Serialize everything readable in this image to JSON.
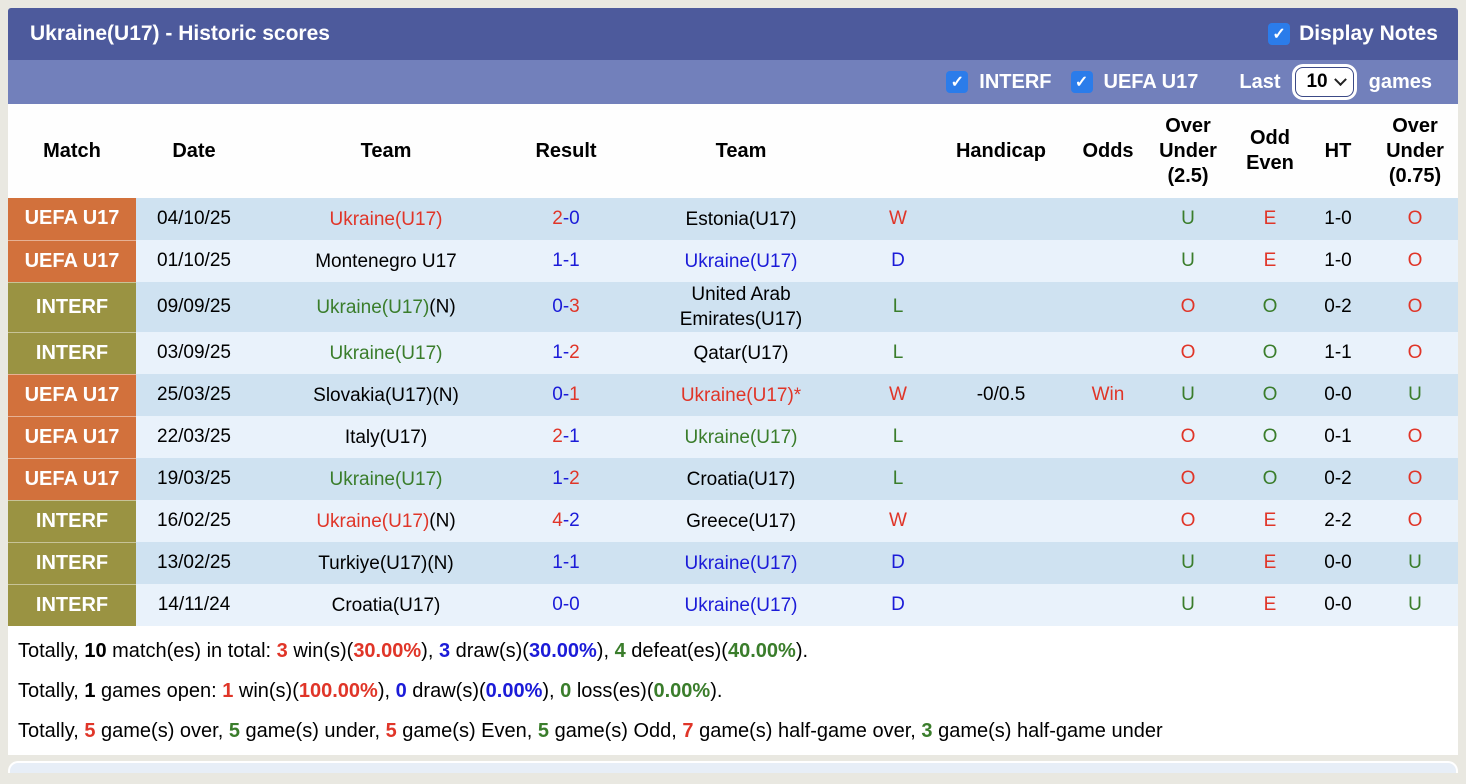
{
  "header": {
    "title": "Ukraine(U17) - Historic scores",
    "display_notes_label": "Display Notes",
    "display_notes_checked": true
  },
  "filter_bar": {
    "interf_label": "INTERF",
    "interf_checked": true,
    "uefa_label": "UEFA U17",
    "uefa_checked": true,
    "last_label": "Last",
    "last_value": "10",
    "games_label": "games"
  },
  "colors": {
    "titlebar": "#4d5a9c",
    "filterbar": "#7280bb",
    "uefa_badge": "#d2713c",
    "interf_badge": "#9a9342",
    "row_dark": "#cfe2f1",
    "row_light": "#e9f2fb",
    "red": "#e03528",
    "blue": "#1b1bd8",
    "green": "#3a7d2b",
    "checkbox_blue": "#2b7cea"
  },
  "table": {
    "columns": [
      "Match",
      "Date",
      "Team",
      "Result",
      "Team",
      "",
      "Handicap",
      "Odds",
      "Over Under (2.5)",
      "Odd Even",
      "HT",
      "Over Under (0.75)"
    ],
    "rows": [
      {
        "league": "UEFA U17",
        "style": "uefa",
        "date": "04/10/25",
        "team1": {
          "text": "Ukraine(U17)",
          "suffix": "",
          "color": "red"
        },
        "result": {
          "home": "2",
          "sep": "-",
          "away": "0",
          "home_color": "red",
          "away_color": "blue"
        },
        "team2": {
          "text": "Estonia(U17)",
          "suffix": "",
          "color": "black"
        },
        "wdl": {
          "text": "W",
          "color": "red"
        },
        "handicap": "",
        "odds": {
          "text": "",
          "color": "red"
        },
        "ou25": {
          "text": "U",
          "color": "green"
        },
        "oe": {
          "text": "E",
          "color": "red"
        },
        "ht": "1-0",
        "ou075": {
          "text": "O",
          "color": "red"
        }
      },
      {
        "league": "UEFA U17",
        "style": "uefa",
        "date": "01/10/25",
        "team1": {
          "text": "Montenegro U17",
          "suffix": "",
          "color": "black"
        },
        "result": {
          "home": "1",
          "sep": "-",
          "away": "1",
          "home_color": "blue",
          "away_color": "blue"
        },
        "team2": {
          "text": "Ukraine(U17)",
          "suffix": "",
          "color": "blue"
        },
        "wdl": {
          "text": "D",
          "color": "blue"
        },
        "handicap": "",
        "odds": {
          "text": "",
          "color": "red"
        },
        "ou25": {
          "text": "U",
          "color": "green"
        },
        "oe": {
          "text": "E",
          "color": "red"
        },
        "ht": "1-0",
        "ou075": {
          "text": "O",
          "color": "red"
        }
      },
      {
        "league": "INTERF",
        "style": "interf",
        "date": "09/09/25",
        "team1": {
          "text": "Ukraine(U17)",
          "suffix": "(N)",
          "color": "green"
        },
        "result": {
          "home": "0",
          "sep": "-",
          "away": "3",
          "home_color": "blue",
          "away_color": "red"
        },
        "team2": {
          "text": "United Arab Emirates(U17)",
          "suffix": "",
          "color": "black"
        },
        "wdl": {
          "text": "L",
          "color": "green"
        },
        "handicap": "",
        "odds": {
          "text": "",
          "color": "red"
        },
        "ou25": {
          "text": "O",
          "color": "red"
        },
        "oe": {
          "text": "O",
          "color": "green"
        },
        "ht": "0-2",
        "ou075": {
          "text": "O",
          "color": "red"
        }
      },
      {
        "league": "INTERF",
        "style": "interf",
        "date": "03/09/25",
        "team1": {
          "text": "Ukraine(U17)",
          "suffix": "",
          "color": "green"
        },
        "result": {
          "home": "1",
          "sep": "-",
          "away": "2",
          "home_color": "blue",
          "away_color": "red"
        },
        "team2": {
          "text": "Qatar(U17)",
          "suffix": "",
          "color": "black"
        },
        "wdl": {
          "text": "L",
          "color": "green"
        },
        "handicap": "",
        "odds": {
          "text": "",
          "color": "red"
        },
        "ou25": {
          "text": "O",
          "color": "red"
        },
        "oe": {
          "text": "O",
          "color": "green"
        },
        "ht": "1-1",
        "ou075": {
          "text": "O",
          "color": "red"
        }
      },
      {
        "league": "UEFA U17",
        "style": "uefa",
        "date": "25/03/25",
        "team1": {
          "text": "Slovakia(U17)(N)",
          "suffix": "",
          "color": "black"
        },
        "result": {
          "home": "0",
          "sep": "-",
          "away": "1",
          "home_color": "blue",
          "away_color": "red"
        },
        "team2": {
          "text": "Ukraine(U17)*",
          "suffix": "",
          "color": "red"
        },
        "wdl": {
          "text": "W",
          "color": "red"
        },
        "handicap": "-0/0.5",
        "odds": {
          "text": "Win",
          "color": "red"
        },
        "ou25": {
          "text": "U",
          "color": "green"
        },
        "oe": {
          "text": "O",
          "color": "green"
        },
        "ht": "0-0",
        "ou075": {
          "text": "U",
          "color": "green"
        }
      },
      {
        "league": "UEFA U17",
        "style": "uefa",
        "date": "22/03/25",
        "team1": {
          "text": "Italy(U17)",
          "suffix": "",
          "color": "black"
        },
        "result": {
          "home": "2",
          "sep": "-",
          "away": "1",
          "home_color": "red",
          "away_color": "blue"
        },
        "team2": {
          "text": "Ukraine(U17)",
          "suffix": "",
          "color": "green"
        },
        "wdl": {
          "text": "L",
          "color": "green"
        },
        "handicap": "",
        "odds": {
          "text": "",
          "color": "red"
        },
        "ou25": {
          "text": "O",
          "color": "red"
        },
        "oe": {
          "text": "O",
          "color": "green"
        },
        "ht": "0-1",
        "ou075": {
          "text": "O",
          "color": "red"
        }
      },
      {
        "league": "UEFA U17",
        "style": "uefa",
        "date": "19/03/25",
        "team1": {
          "text": "Ukraine(U17)",
          "suffix": "",
          "color": "green"
        },
        "result": {
          "home": "1",
          "sep": "-",
          "away": "2",
          "home_color": "blue",
          "away_color": "red"
        },
        "team2": {
          "text": "Croatia(U17)",
          "suffix": "",
          "color": "black"
        },
        "wdl": {
          "text": "L",
          "color": "green"
        },
        "handicap": "",
        "odds": {
          "text": "",
          "color": "red"
        },
        "ou25": {
          "text": "O",
          "color": "red"
        },
        "oe": {
          "text": "O",
          "color": "green"
        },
        "ht": "0-2",
        "ou075": {
          "text": "O",
          "color": "red"
        }
      },
      {
        "league": "INTERF",
        "style": "interf",
        "date": "16/02/25",
        "team1": {
          "text": "Ukraine(U17)",
          "suffix": "(N)",
          "color": "red"
        },
        "result": {
          "home": "4",
          "sep": "-",
          "away": "2",
          "home_color": "red",
          "away_color": "blue"
        },
        "team2": {
          "text": "Greece(U17)",
          "suffix": "",
          "color": "black"
        },
        "wdl": {
          "text": "W",
          "color": "red"
        },
        "handicap": "",
        "odds": {
          "text": "",
          "color": "red"
        },
        "ou25": {
          "text": "O",
          "color": "red"
        },
        "oe": {
          "text": "E",
          "color": "red"
        },
        "ht": "2-2",
        "ou075": {
          "text": "O",
          "color": "red"
        }
      },
      {
        "league": "INTERF",
        "style": "interf",
        "date": "13/02/25",
        "team1": {
          "text": "Turkiye(U17)(N)",
          "suffix": "",
          "color": "black"
        },
        "result": {
          "home": "1",
          "sep": "-",
          "away": "1",
          "home_color": "blue",
          "away_color": "blue"
        },
        "team2": {
          "text": "Ukraine(U17)",
          "suffix": "",
          "color": "blue"
        },
        "wdl": {
          "text": "D",
          "color": "blue"
        },
        "handicap": "",
        "odds": {
          "text": "",
          "color": "red"
        },
        "ou25": {
          "text": "U",
          "color": "green"
        },
        "oe": {
          "text": "E",
          "color": "red"
        },
        "ht": "0-0",
        "ou075": {
          "text": "U",
          "color": "green"
        }
      },
      {
        "league": "INTERF",
        "style": "interf",
        "date": "14/11/24",
        "team1": {
          "text": "Croatia(U17)",
          "suffix": "",
          "color": "black"
        },
        "result": {
          "home": "0",
          "sep": "-",
          "away": "0",
          "home_color": "blue",
          "away_color": "blue"
        },
        "team2": {
          "text": "Ukraine(U17)",
          "suffix": "",
          "color": "blue"
        },
        "wdl": {
          "text": "D",
          "color": "blue"
        },
        "handicap": "",
        "odds": {
          "text": "",
          "color": "red"
        },
        "ou25": {
          "text": "U",
          "color": "green"
        },
        "oe": {
          "text": "E",
          "color": "red"
        },
        "ht": "0-0",
        "ou075": {
          "text": "U",
          "color": "green"
        }
      }
    ]
  },
  "summary": {
    "lines": [
      [
        {
          "t": "Totally, ",
          "c": "black"
        },
        {
          "t": "10",
          "c": "black",
          "b": true
        },
        {
          "t": " match(es) in total: ",
          "c": "black"
        },
        {
          "t": "3",
          "c": "red",
          "b": true
        },
        {
          "t": " win(s)(",
          "c": "black"
        },
        {
          "t": "30.00%",
          "c": "red",
          "b": true
        },
        {
          "t": "), ",
          "c": "black"
        },
        {
          "t": "3",
          "c": "blue",
          "b": true
        },
        {
          "t": " draw(s)(",
          "c": "black"
        },
        {
          "t": "30.00%",
          "c": "blue",
          "b": true
        },
        {
          "t": "), ",
          "c": "black"
        },
        {
          "t": "4",
          "c": "green",
          "b": true
        },
        {
          "t": " defeat(es)(",
          "c": "black"
        },
        {
          "t": "40.00%",
          "c": "green",
          "b": true
        },
        {
          "t": ").",
          "c": "black"
        }
      ],
      [
        {
          "t": "Totally, ",
          "c": "black"
        },
        {
          "t": "1",
          "c": "black",
          "b": true
        },
        {
          "t": " games open: ",
          "c": "black"
        },
        {
          "t": "1",
          "c": "red",
          "b": true
        },
        {
          "t": " win(s)(",
          "c": "black"
        },
        {
          "t": "100.00%",
          "c": "red",
          "b": true
        },
        {
          "t": "), ",
          "c": "black"
        },
        {
          "t": "0",
          "c": "blue",
          "b": true
        },
        {
          "t": " draw(s)(",
          "c": "black"
        },
        {
          "t": "0.00%",
          "c": "blue",
          "b": true
        },
        {
          "t": "), ",
          "c": "black"
        },
        {
          "t": "0",
          "c": "green",
          "b": true
        },
        {
          "t": " loss(es)(",
          "c": "black"
        },
        {
          "t": "0.00%",
          "c": "green",
          "b": true
        },
        {
          "t": ").",
          "c": "black"
        }
      ],
      [
        {
          "t": "Totally, ",
          "c": "black"
        },
        {
          "t": "5",
          "c": "red",
          "b": true
        },
        {
          "t": " game(s) over, ",
          "c": "black"
        },
        {
          "t": "5",
          "c": "green",
          "b": true
        },
        {
          "t": " game(s) under, ",
          "c": "black"
        },
        {
          "t": "5",
          "c": "red",
          "b": true
        },
        {
          "t": " game(s) Even, ",
          "c": "black"
        },
        {
          "t": "5",
          "c": "green",
          "b": true
        },
        {
          "t": " game(s) Odd, ",
          "c": "black"
        },
        {
          "t": "7",
          "c": "red",
          "b": true
        },
        {
          "t": " game(s) half-game over, ",
          "c": "black"
        },
        {
          "t": "3",
          "c": "green",
          "b": true
        },
        {
          "t": " game(s) half-game under",
          "c": "black"
        }
      ]
    ]
  }
}
